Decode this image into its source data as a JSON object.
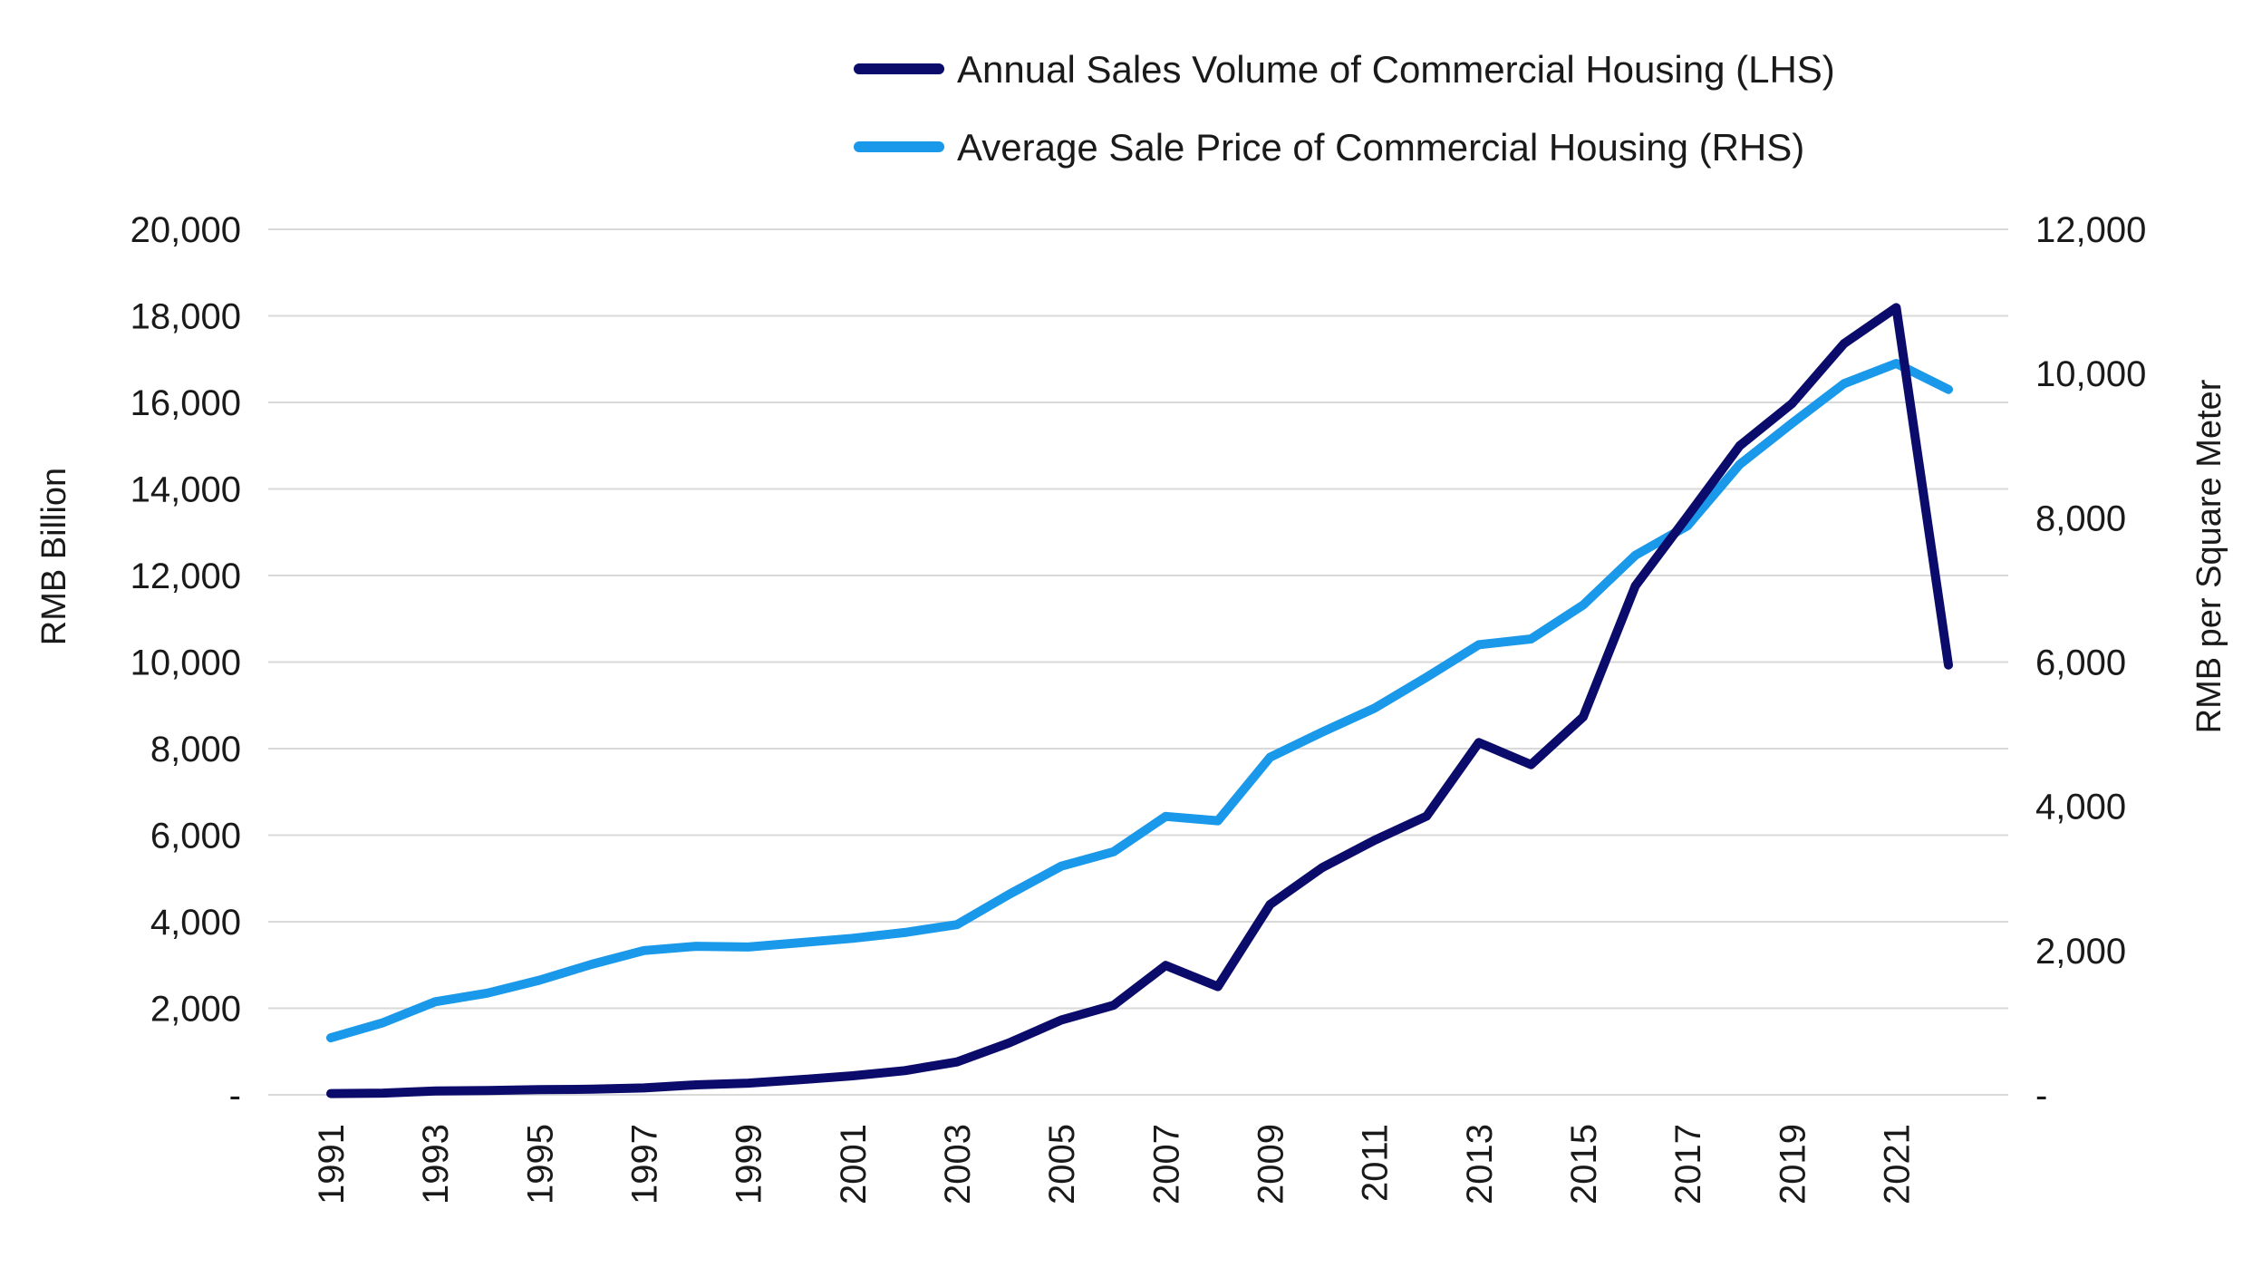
{
  "chart_data": {
    "type": "line",
    "title": "",
    "x": [
      1991,
      1992,
      1993,
      1994,
      1995,
      1996,
      1997,
      1998,
      1999,
      2000,
      2001,
      2002,
      2003,
      2004,
      2005,
      2006,
      2007,
      2008,
      2009,
      2010,
      2011,
      2012,
      2013,
      2014,
      2015,
      2016,
      2017,
      2018,
      2019,
      2020,
      2021,
      2022
    ],
    "x_tick_labels": [
      "1991",
      "1993",
      "1995",
      "1997",
      "1999",
      "2001",
      "2003",
      "2005",
      "2007",
      "2009",
      "2011",
      "2013",
      "2015",
      "2017",
      "2019",
      "2021"
    ],
    "ylabel_left": "RMB Billion",
    "ylabel_right": "RMB per Square Meter",
    "ylim_left": [
      0,
      20000
    ],
    "ylim_right": [
      0,
      12000
    ],
    "y_ticks_left": [
      0,
      2000,
      4000,
      6000,
      8000,
      10000,
      12000,
      14000,
      16000,
      18000,
      20000
    ],
    "y_tick_labels_left": [
      "-",
      "2,000",
      "4,000",
      "6,000",
      "8,000",
      "10,000",
      "12,000",
      "14,000",
      "16,000",
      "18,000",
      "20,000"
    ],
    "y_ticks_right": [
      0,
      2000,
      4000,
      6000,
      8000,
      10000,
      12000
    ],
    "y_tick_labels_right": [
      "-",
      "2,000",
      "4,000",
      "6,000",
      "8,000",
      "10,000",
      "12,000"
    ],
    "grid": true,
    "legend_position": "top-right",
    "series": [
      {
        "name": "Annual Sales Volume of Commercial Housing (LHS)",
        "axis": "left",
        "color": "#0b0b6b",
        "values": [
          30,
          40,
          90,
          100,
          120,
          130,
          160,
          230,
          270,
          350,
          440,
          560,
          760,
          1200,
          1730,
          2070,
          2990,
          2500,
          4400,
          5250,
          5880,
          6440,
          8140,
          7630,
          8730,
          11760,
          13370,
          15000,
          15970,
          17360,
          18190,
          9930
        ]
      },
      {
        "name": "Average Sale Price of Commercial Housing (RHS)",
        "axis": "right",
        "color": "#1a99ea",
        "values": [
          790,
          1000,
          1290,
          1410,
          1590,
          1810,
          2000,
          2060,
          2050,
          2110,
          2170,
          2250,
          2360,
          2780,
          3170,
          3370,
          3860,
          3800,
          4680,
          5030,
          5360,
          5790,
          6240,
          6320,
          6790,
          7480,
          7890,
          8740,
          9310,
          9860,
          10140,
          9780
        ]
      }
    ]
  }
}
